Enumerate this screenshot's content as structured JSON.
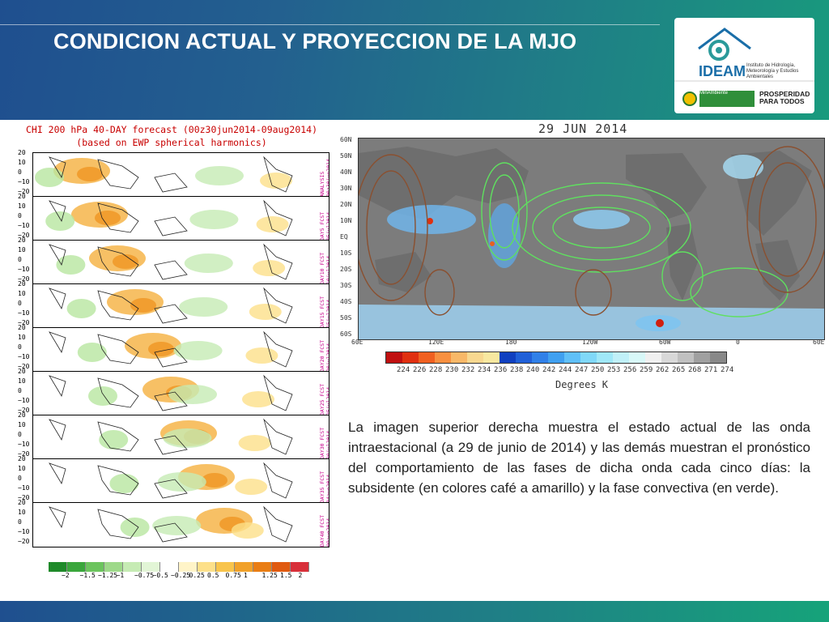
{
  "slide": {
    "title": "CONDICION ACTUAL Y PROYECCION DE LA MJO",
    "description": "La imagen superior derecha muestra el estado actual de las onda intraestacional (a 29 de junio de 2014) y las demás muestran el pronóstico del comportamiento de las fases de dicha onda cada cinco días: la subsidente (en colores café a amarillo) y la fase convectiva (en verde)."
  },
  "logos": {
    "ideam_name": "IDEAM",
    "ideam_subtitle": "Instituto de Hidrología, Meteorología y Estudios Ambientales",
    "ministry": "MinAmbiente",
    "slogan": "PROSPERIDAD PARA TODOS"
  },
  "left_figure": {
    "title_line1": "CHI 200 hPa 40-DAY forecast (00z30jun2014-09aug2014)",
    "title_line2": "(based on EWP spherical harmonics)",
    "panels": [
      {
        "label": "ANALYSIS 00z30jun2014"
      },
      {
        "label": "DAY5 FCST 05jul2014"
      },
      {
        "label": "DAY10 FCST 10jul2014"
      },
      {
        "label": "DAY15 FCST 15jul2014"
      },
      {
        "label": "DAY20 FCST 20jul2014"
      },
      {
        "label": "DAY25 FCST 25jul2014"
      },
      {
        "label": "DAY30 FCST 30jul2014"
      },
      {
        "label": "DAY35 FCST 04aug2014"
      },
      {
        "label": "DAY40 FCST 09aug2014"
      }
    ],
    "y_ticks": [
      "20",
      "10",
      "0",
      "−10",
      "−20"
    ],
    "colorbar_labels": [
      "−2",
      "−1.5",
      "−1.25",
      "−1",
      "−0.75",
      "−0.5",
      "−0.25",
      "0.25",
      "0.5",
      "0.75",
      "1",
      "1.25",
      "1.5",
      "2"
    ],
    "colorbar_colors": [
      "#1f8a2a",
      "#3aa63c",
      "#6cc45e",
      "#9ed98a",
      "#c6ebb4",
      "#e2f5d6",
      "#ffffff",
      "#fff4c8",
      "#fde08a",
      "#f8c44c",
      "#f1a12a",
      "#e97d14",
      "#e05a10",
      "#d8303a"
    ]
  },
  "right_figure": {
    "date": "29 JUN 2014",
    "lat_labels": [
      "60N",
      "50N",
      "40N",
      "30N",
      "20N",
      "10N",
      "EQ",
      "10S",
      "20S",
      "30S",
      "40S",
      "50S",
      "60S"
    ],
    "lon_labels": [
      "60E",
      "120E",
      "180",
      "120W",
      "60W",
      "0",
      "60E"
    ],
    "colorbar_labels": [
      "224",
      "226",
      "228",
      "230",
      "232",
      "234",
      "236",
      "238",
      "240",
      "242",
      "244",
      "247",
      "250",
      "253",
      "256",
      "259",
      "262",
      "265",
      "268",
      "271",
      "274"
    ],
    "colorbar_colors": [
      "#c01010",
      "#e03010",
      "#f06020",
      "#f89040",
      "#f8b868",
      "#f8d890",
      "#f8e8a0",
      "#1040c0",
      "#2060d8",
      "#3080e8",
      "#40a0f0",
      "#60c0f8",
      "#80d8f8",
      "#a0e8f8",
      "#c0f0f8",
      "#d8f8f8",
      "#f0f0f0",
      "#d8d8d8",
      "#c0c0c0",
      "#a0a0a0",
      "#888888"
    ],
    "colorbar_title": "Degrees K"
  }
}
